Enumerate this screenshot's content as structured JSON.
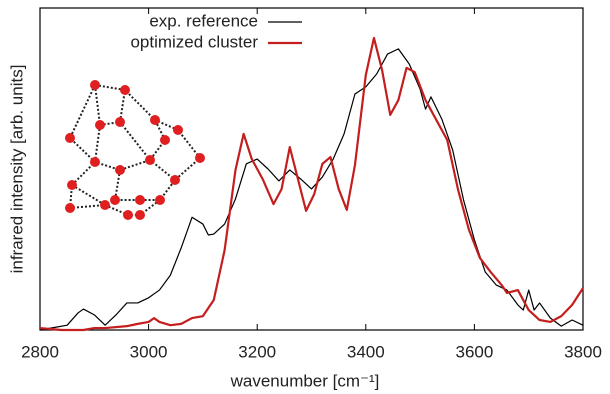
{
  "chart_data": {
    "type": "line",
    "xlabel": "wavenumber [cm⁻¹]",
    "ylabel": "infrared intensity [arb. units]",
    "xlim": [
      2800,
      3800
    ],
    "xticks": [
      2800,
      3000,
      3200,
      3400,
      3600,
      3800
    ],
    "ylim": [
      0,
      100
    ],
    "legend": "top-left",
    "series": [
      {
        "name": "exp. reference",
        "color": "#000000",
        "x": [
          2800,
          2830,
          2850,
          2870,
          2880,
          2900,
          2920,
          2940,
          2960,
          2980,
          3000,
          3020,
          3040,
          3060,
          3080,
          3100,
          3110,
          3120,
          3140,
          3160,
          3180,
          3200,
          3220,
          3240,
          3260,
          3280,
          3300,
          3320,
          3340,
          3360,
          3380,
          3400,
          3420,
          3440,
          3460,
          3480,
          3500,
          3510,
          3520,
          3540,
          3560,
          3580,
          3600,
          3620,
          3640,
          3660,
          3680,
          3690,
          3700,
          3710,
          3720,
          3740,
          3760,
          3780,
          3800
        ],
        "values": [
          0,
          0.9,
          1.5,
          5.3,
          6.5,
          4.7,
          1.5,
          4.7,
          8.4,
          8.4,
          10,
          12.4,
          17,
          25.5,
          35,
          32.9,
          29.5,
          29.8,
          32.9,
          40.7,
          51.6,
          53.1,
          50,
          46.3,
          49.7,
          46.9,
          43.8,
          47.5,
          53.1,
          60.9,
          73.3,
          75.5,
          79.5,
          85.7,
          87.3,
          82.6,
          74.8,
          68.6,
          72.4,
          65.5,
          55.9,
          40.4,
          28,
          18,
          14,
          12.4,
          7.8,
          6.2,
          12.4,
          6.2,
          8.4,
          3.7,
          1.2,
          3.1,
          1.5
        ]
      },
      {
        "name": "optimized cluster",
        "color": "#c41e1e",
        "x": [
          2800,
          2840,
          2880,
          2900,
          2920,
          2960,
          2980,
          3000,
          3010,
          3020,
          3040,
          3060,
          3080,
          3100,
          3120,
          3140,
          3160,
          3175,
          3190,
          3210,
          3230,
          3245,
          3260,
          3275,
          3290,
          3305,
          3320,
          3335,
          3350,
          3365,
          3380,
          3400,
          3415,
          3430,
          3445,
          3460,
          3475,
          3490,
          3510,
          3530,
          3550,
          3570,
          3590,
          3610,
          3630,
          3650,
          3660,
          3680,
          3700,
          3720,
          3740,
          3760,
          3780,
          3800
        ],
        "values": [
          0.6,
          0,
          0,
          0.6,
          0.6,
          1.2,
          1.9,
          2.5,
          3.7,
          2.5,
          1.5,
          1.9,
          3.7,
          4.3,
          9.3,
          24.8,
          49.7,
          60.9,
          53.1,
          46.9,
          39.1,
          43.8,
          56.8,
          46.9,
          37,
          42.2,
          51.6,
          53.7,
          43.8,
          37.3,
          51.2,
          79.2,
          90.7,
          80.7,
          66.8,
          71.4,
          81.4,
          80.1,
          71.4,
          65.2,
          59,
          43.5,
          31.1,
          22.4,
          18,
          14,
          11.5,
          12.4,
          6.2,
          3.1,
          2.5,
          4.3,
          7.8,
          13
        ]
      }
    ]
  }
}
